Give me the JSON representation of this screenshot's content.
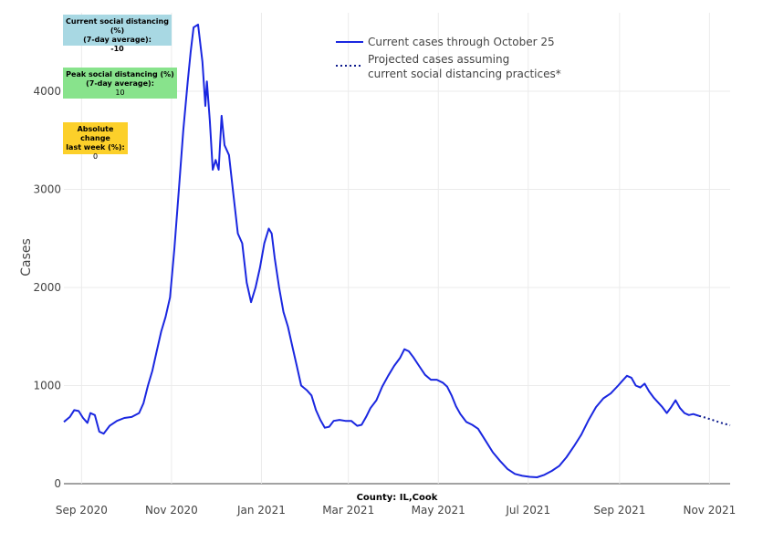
{
  "chart_data": {
    "type": "line",
    "xlabel": "",
    "ylabel": "Cases",
    "annotation": "County: IL,Cook",
    "ylim": [
      0,
      4800
    ],
    "x_range": [
      "2020-08-20",
      "2021-11-15"
    ],
    "y_ticks": [
      0,
      1000,
      2000,
      3000,
      4000
    ],
    "y_tick_labels": [
      "0",
      "1000",
      "2000",
      "3000",
      "4000"
    ],
    "x_ticks": [
      "2020-09-01",
      "2020-11-01",
      "2021-01-01",
      "2021-03-01",
      "2021-05-01",
      "2021-07-01",
      "2021-09-01",
      "2021-11-01"
    ],
    "x_tick_labels": [
      "Sep 2020",
      "Nov 2020",
      "Jan 2021",
      "Mar 2021",
      "May 2021",
      "Jul 2021",
      "Sep 2021",
      "Nov 2021"
    ],
    "grid": true,
    "legend_position": "top-center",
    "series": [
      {
        "name": "Current cases through October 25",
        "style": "solid",
        "color": "#1a27e0",
        "points": [
          [
            "2020-08-20",
            630
          ],
          [
            "2020-08-24",
            680
          ],
          [
            "2020-08-27",
            750
          ],
          [
            "2020-08-30",
            740
          ],
          [
            "2020-09-02",
            670
          ],
          [
            "2020-09-05",
            620
          ],
          [
            "2020-09-07",
            720
          ],
          [
            "2020-09-10",
            700
          ],
          [
            "2020-09-13",
            530
          ],
          [
            "2020-09-16",
            510
          ],
          [
            "2020-09-20",
            590
          ],
          [
            "2020-09-25",
            640
          ],
          [
            "2020-09-30",
            670
          ],
          [
            "2020-10-05",
            680
          ],
          [
            "2020-10-10",
            720
          ],
          [
            "2020-10-13",
            820
          ],
          [
            "2020-10-16",
            1000
          ],
          [
            "2020-10-19",
            1150
          ],
          [
            "2020-10-22",
            1350
          ],
          [
            "2020-10-25",
            1550
          ],
          [
            "2020-10-28",
            1700
          ],
          [
            "2020-10-31",
            1900
          ],
          [
            "2020-11-03",
            2400
          ],
          [
            "2020-11-06",
            3000
          ],
          [
            "2020-11-09",
            3600
          ],
          [
            "2020-11-12",
            4100
          ],
          [
            "2020-11-14",
            4400
          ],
          [
            "2020-11-16",
            4650
          ],
          [
            "2020-11-19",
            4680
          ],
          [
            "2020-11-22",
            4300
          ],
          [
            "2020-11-24",
            3850
          ],
          [
            "2020-11-25",
            4100
          ],
          [
            "2020-11-27",
            3700
          ],
          [
            "2020-11-29",
            3200
          ],
          [
            "2020-12-01",
            3300
          ],
          [
            "2020-12-03",
            3200
          ],
          [
            "2020-12-05",
            3750
          ],
          [
            "2020-12-07",
            3450
          ],
          [
            "2020-12-10",
            3350
          ],
          [
            "2020-12-13",
            2950
          ],
          [
            "2020-12-16",
            2550
          ],
          [
            "2020-12-19",
            2450
          ],
          [
            "2020-12-22",
            2050
          ],
          [
            "2020-12-25",
            1850
          ],
          [
            "2020-12-28",
            2000
          ],
          [
            "2020-12-31",
            2200
          ],
          [
            "2021-01-03",
            2450
          ],
          [
            "2021-01-06",
            2600
          ],
          [
            "2021-01-08",
            2550
          ],
          [
            "2021-01-10",
            2300
          ],
          [
            "2021-01-13",
            2000
          ],
          [
            "2021-01-16",
            1750
          ],
          [
            "2021-01-19",
            1600
          ],
          [
            "2021-01-22",
            1400
          ],
          [
            "2021-01-25",
            1200
          ],
          [
            "2021-01-28",
            1000
          ],
          [
            "2021-02-01",
            950
          ],
          [
            "2021-02-04",
            900
          ],
          [
            "2021-02-07",
            750
          ],
          [
            "2021-02-10",
            650
          ],
          [
            "2021-02-13",
            570
          ],
          [
            "2021-02-16",
            580
          ],
          [
            "2021-02-19",
            640
          ],
          [
            "2021-02-23",
            650
          ],
          [
            "2021-02-27",
            640
          ],
          [
            "2021-03-03",
            640
          ],
          [
            "2021-03-07",
            590
          ],
          [
            "2021-03-10",
            600
          ],
          [
            "2021-03-13",
            680
          ],
          [
            "2021-03-16",
            770
          ],
          [
            "2021-03-20",
            850
          ],
          [
            "2021-03-24",
            990
          ],
          [
            "2021-03-28",
            1100
          ],
          [
            "2021-04-01",
            1200
          ],
          [
            "2021-04-05",
            1280
          ],
          [
            "2021-04-08",
            1370
          ],
          [
            "2021-04-11",
            1350
          ],
          [
            "2021-04-14",
            1290
          ],
          [
            "2021-04-18",
            1200
          ],
          [
            "2021-04-22",
            1110
          ],
          [
            "2021-04-26",
            1060
          ],
          [
            "2021-04-30",
            1060
          ],
          [
            "2021-05-04",
            1030
          ],
          [
            "2021-05-07",
            990
          ],
          [
            "2021-05-10",
            900
          ],
          [
            "2021-05-13",
            790
          ],
          [
            "2021-05-16",
            710
          ],
          [
            "2021-05-20",
            630
          ],
          [
            "2021-05-24",
            600
          ],
          [
            "2021-05-28",
            560
          ],
          [
            "2021-06-02",
            440
          ],
          [
            "2021-06-07",
            320
          ],
          [
            "2021-06-12",
            230
          ],
          [
            "2021-06-17",
            150
          ],
          [
            "2021-06-22",
            100
          ],
          [
            "2021-06-27",
            80
          ],
          [
            "2021-07-02",
            70
          ],
          [
            "2021-07-07",
            65
          ],
          [
            "2021-07-12",
            90
          ],
          [
            "2021-07-17",
            130
          ],
          [
            "2021-07-22",
            180
          ],
          [
            "2021-07-27",
            270
          ],
          [
            "2021-08-01",
            380
          ],
          [
            "2021-08-06",
            500
          ],
          [
            "2021-08-11",
            650
          ],
          [
            "2021-08-16",
            780
          ],
          [
            "2021-08-21",
            870
          ],
          [
            "2021-08-26",
            920
          ],
          [
            "2021-08-31",
            1000
          ],
          [
            "2021-09-03",
            1050
          ],
          [
            "2021-09-06",
            1100
          ],
          [
            "2021-09-09",
            1080
          ],
          [
            "2021-09-12",
            1000
          ],
          [
            "2021-09-15",
            980
          ],
          [
            "2021-09-18",
            1020
          ],
          [
            "2021-09-21",
            940
          ],
          [
            "2021-09-24",
            880
          ],
          [
            "2021-09-27",
            830
          ],
          [
            "2021-09-30",
            780
          ],
          [
            "2021-10-03",
            720
          ],
          [
            "2021-10-06",
            780
          ],
          [
            "2021-10-09",
            850
          ],
          [
            "2021-10-12",
            770
          ],
          [
            "2021-10-15",
            720
          ],
          [
            "2021-10-18",
            700
          ],
          [
            "2021-10-21",
            710
          ],
          [
            "2021-10-25",
            690
          ]
        ]
      },
      {
        "name": "Projected cases assuming current social distancing practices*",
        "name_lines": [
          "Projected cases assuming",
          "current social distancing practices*"
        ],
        "style": "dotted",
        "color": "#0c1a8c",
        "points": [
          [
            "2021-10-25",
            690
          ],
          [
            "2021-10-30",
            670
          ],
          [
            "2021-11-04",
            645
          ],
          [
            "2021-11-09",
            620
          ],
          [
            "2021-11-15",
            595
          ]
        ]
      }
    ]
  },
  "stats": {
    "current_social_distancing": {
      "title": "Current social distancing (%)\n(7-day average):",
      "value": "-10",
      "color": "#a8d8e3"
    },
    "peak_social_distancing": {
      "title": "Peak social distancing (%)\n(7-day average):",
      "value": "10",
      "color": "#88e38c"
    },
    "absolute_change": {
      "title": "Absolute change\nlast week (%):",
      "value": "0",
      "color": "#fcd02a"
    }
  }
}
